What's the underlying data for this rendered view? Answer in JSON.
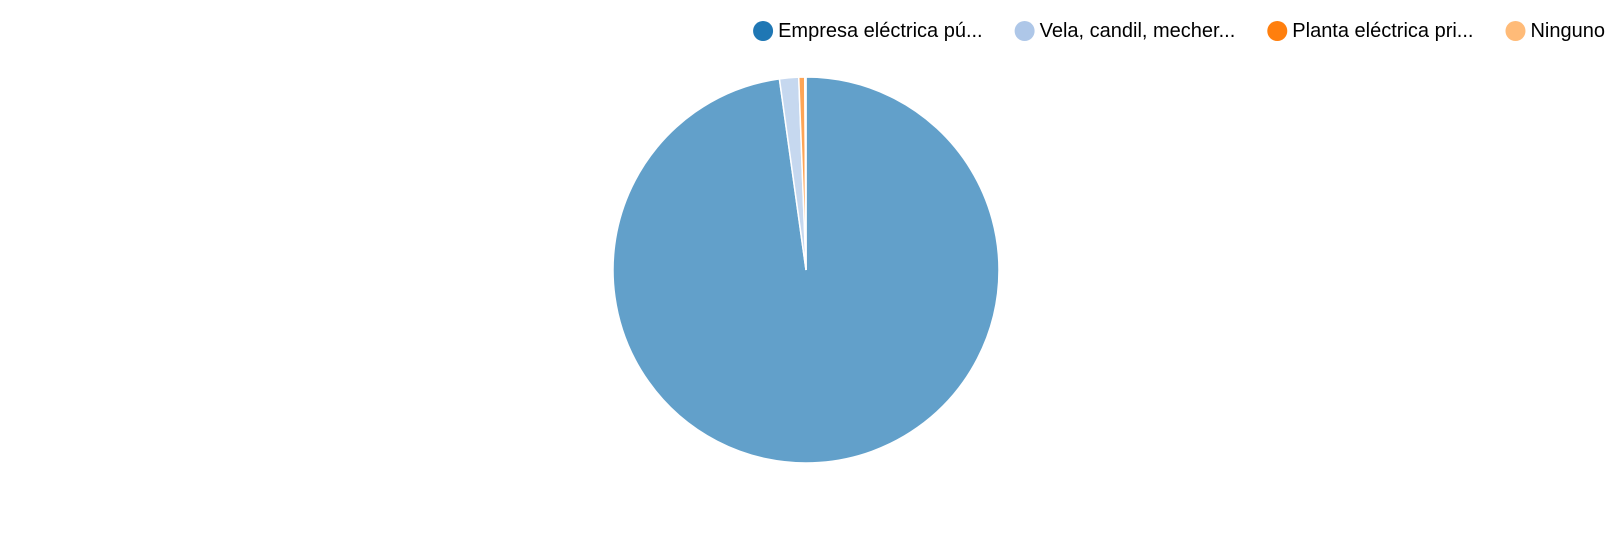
{
  "chart_data": {
    "type": "pie",
    "title": "",
    "categories": [
      "Empresa eléctrica pú...",
      "Vela, candil, mecher...",
      "Planta eléctrica pri...",
      "Ninguno"
    ],
    "values": [
      97.8,
      1.6,
      0.5,
      0.1
    ],
    "colors": [
      "#1f77b4",
      "#aec7e8",
      "#ff7f0e",
      "#ffbb78"
    ],
    "slice_opacity": 0.7,
    "legend_position": "top-right",
    "start_angle": "12 o'clock",
    "direction": "clockwise"
  }
}
